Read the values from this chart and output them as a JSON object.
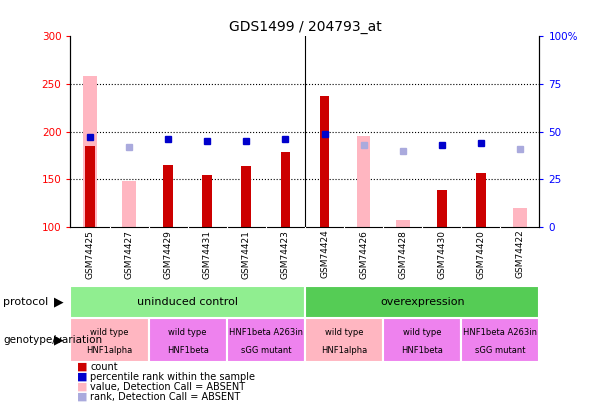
{
  "title": "GDS1499 / 204793_at",
  "samples": [
    "GSM74425",
    "GSM74427",
    "GSM74429",
    "GSM74431",
    "GSM74421",
    "GSM74423",
    "GSM74424",
    "GSM74426",
    "GSM74428",
    "GSM74430",
    "GSM74420",
    "GSM74422"
  ],
  "count": [
    185,
    null,
    165,
    154,
    164,
    179,
    237,
    null,
    null,
    139,
    157,
    null
  ],
  "value_absent": [
    258,
    148,
    null,
    null,
    null,
    null,
    null,
    195,
    107,
    null,
    null,
    120
  ],
  "rank_pct": [
    47,
    null,
    46,
    45,
    45,
    46,
    49,
    null,
    null,
    43,
    44,
    null
  ],
  "rank_absent_pct": [
    null,
    42,
    null,
    null,
    null,
    null,
    null,
    43,
    40,
    null,
    null,
    41
  ],
  "ylim": [
    100,
    300
  ],
  "yticks_left": [
    100,
    150,
    200,
    250,
    300
  ],
  "yticks_right": [
    0,
    25,
    50,
    75,
    100
  ],
  "dotted_lines": [
    150,
    200,
    250
  ],
  "protocol_groups": [
    {
      "label": "uninduced control",
      "start": 0,
      "end": 6,
      "color": "#90EE90"
    },
    {
      "label": "overexpression",
      "start": 6,
      "end": 12,
      "color": "#55CC55"
    }
  ],
  "genotype_groups": [
    {
      "label": "wild type\nHNF1alpha",
      "start": 0,
      "end": 2,
      "color": "#FFB6C1"
    },
    {
      "label": "wild type\nHNF1beta",
      "start": 2,
      "end": 4,
      "color": "#EE82EE"
    },
    {
      "label": "HNF1beta A263in\nsGG mutant",
      "start": 4,
      "end": 6,
      "color": "#EE82EE"
    },
    {
      "label": "wild type\nHNF1alpha",
      "start": 6,
      "end": 8,
      "color": "#FFB6C1"
    },
    {
      "label": "wild type\nHNF1beta",
      "start": 8,
      "end": 10,
      "color": "#EE82EE"
    },
    {
      "label": "HNF1beta A263in\nsGG mutant",
      "start": 10,
      "end": 12,
      "color": "#EE82EE"
    }
  ],
  "bar_color_dark_red": "#CC0000",
  "bar_color_pink": "#FFB6C1",
  "square_blue": "#0000CC",
  "square_lightblue": "#AAAADD",
  "pink_absent_bar_width": 0.35,
  "red_bar_width": 0.25,
  "marker_size": 5,
  "legend_items": [
    {
      "color": "#CC0000",
      "label": "count"
    },
    {
      "color": "#0000CC",
      "label": "percentile rank within the sample"
    },
    {
      "color": "#FFB6C1",
      "label": "value, Detection Call = ABSENT"
    },
    {
      "color": "#AAAADD",
      "label": "rank, Detection Call = ABSENT"
    }
  ]
}
